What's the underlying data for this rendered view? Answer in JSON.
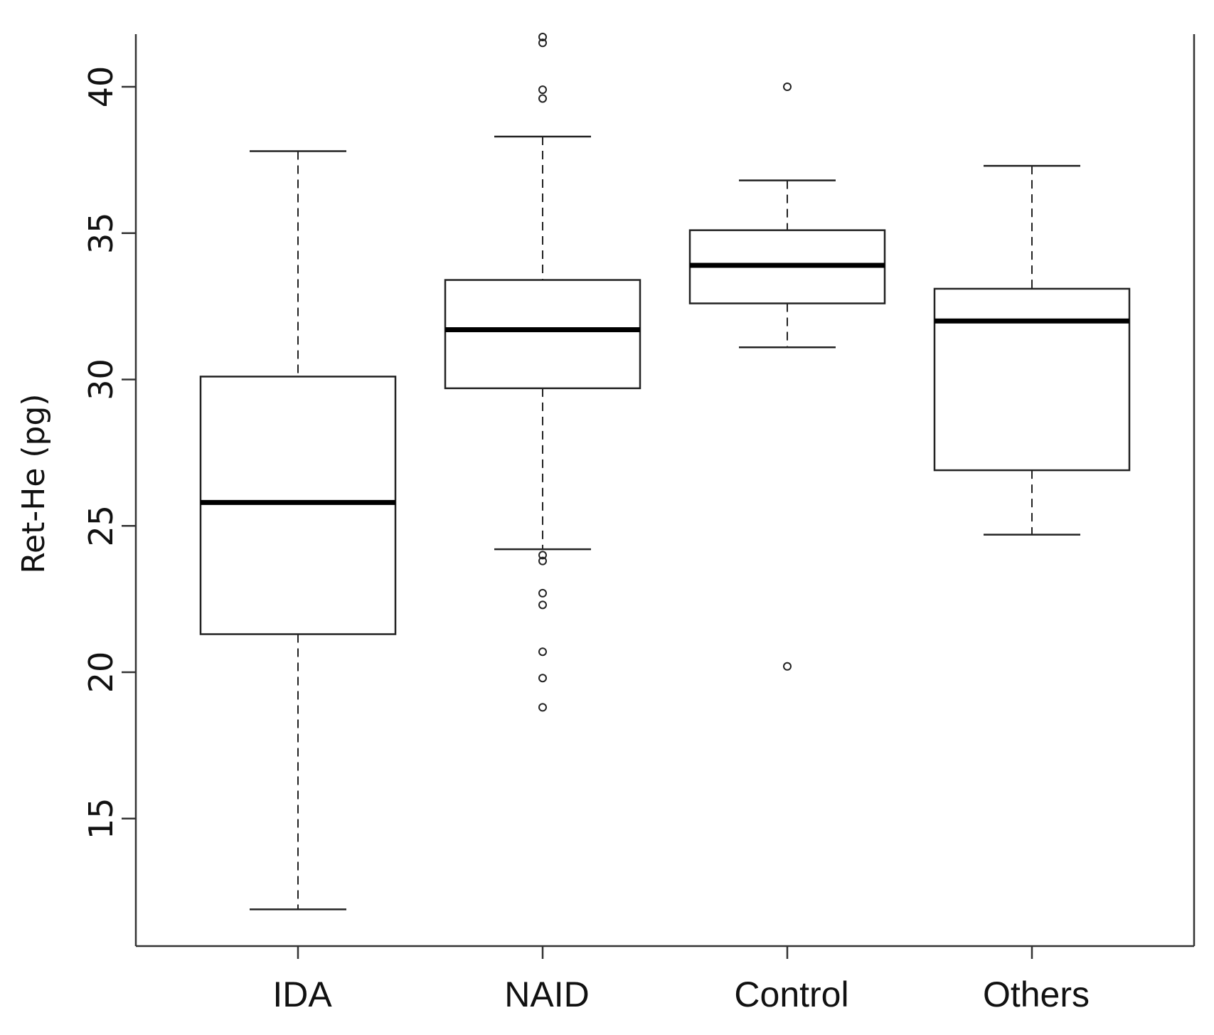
{
  "chart_data": {
    "type": "box",
    "title": "",
    "xlabel": "",
    "ylabel": "Ret-He (pg)",
    "ylim": [
      11,
      42
    ],
    "yticks": [
      15,
      20,
      25,
      30,
      35,
      40
    ],
    "categories": [
      "IDA",
      "NAID",
      "Control",
      "Others"
    ],
    "boxes": [
      {
        "name": "IDA",
        "whisker_low": 11.9,
        "q1": 21.3,
        "median": 25.8,
        "q3": 30.1,
        "whisker_high": 37.8,
        "outliers": []
      },
      {
        "name": "NAID",
        "whisker_low": 24.2,
        "q1": 29.7,
        "median": 31.7,
        "q3": 33.4,
        "whisker_high": 38.3,
        "outliers": [
          41.7,
          41.5,
          39.9,
          39.6,
          24.0,
          23.8,
          22.7,
          22.3,
          20.7,
          19.8,
          18.8
        ]
      },
      {
        "name": "Control",
        "whisker_low": 31.1,
        "q1": 32.6,
        "median": 33.9,
        "q3": 35.1,
        "whisker_high": 36.8,
        "outliers": [
          40.0,
          20.2
        ]
      },
      {
        "name": "Others",
        "whisker_low": 24.7,
        "q1": 26.9,
        "median": 32.0,
        "q3": 33.1,
        "whisker_high": 37.3,
        "outliers": []
      }
    ]
  }
}
